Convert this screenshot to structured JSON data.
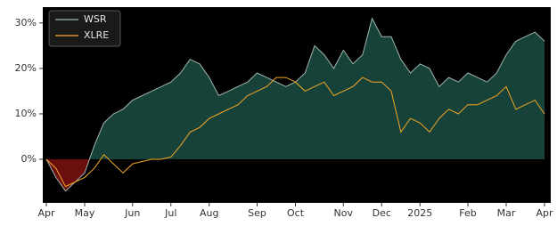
{
  "chart_data": {
    "type": "line",
    "categories": [
      "Apr",
      null,
      null,
      null,
      "May",
      null,
      null,
      null,
      null,
      "Jun",
      null,
      null,
      null,
      "Jul",
      null,
      null,
      null,
      "Aug",
      null,
      null,
      null,
      null,
      "Sep",
      null,
      null,
      null,
      "Oct",
      null,
      null,
      null,
      null,
      "Nov",
      null,
      null,
      null,
      "Dec",
      null,
      null,
      null,
      "2025",
      null,
      null,
      null,
      null,
      "Feb",
      null,
      null,
      null,
      "Mar",
      null,
      null,
      null,
      "Apr"
    ],
    "series": [
      {
        "name": "WSR",
        "color": "#9fb5ad",
        "fill": "#17423a",
        "negative_fill": "#6a0e0e",
        "values": [
          0,
          -4,
          -7,
          -5,
          -3,
          3,
          8,
          10,
          11,
          13,
          14,
          15,
          16,
          17,
          19,
          22,
          21,
          18,
          14,
          15,
          16,
          17,
          19,
          18,
          17,
          16,
          17,
          19,
          25,
          23,
          20,
          24,
          21,
          23,
          31,
          27,
          27,
          22,
          19,
          21,
          20,
          16,
          18,
          17,
          19,
          18,
          17,
          19,
          23,
          26,
          27,
          28,
          26
        ]
      },
      {
        "name": "XLRE",
        "color": "#f5a623",
        "values": [
          0,
          -2,
          -6,
          -5,
          -4,
          -2,
          1,
          -1,
          -3,
          -1,
          -0.5,
          0,
          0,
          0.5,
          3,
          6,
          7,
          9,
          10,
          11,
          12,
          14,
          15,
          16,
          18,
          18,
          17,
          15,
          16,
          17,
          14,
          15,
          16,
          18,
          17,
          17,
          15,
          6,
          9,
          8,
          6,
          9,
          11,
          10,
          12,
          12,
          13,
          14,
          16,
          11,
          12,
          13,
          10
        ]
      }
    ],
    "ylim": [
      -9.6,
      33.5
    ],
    "yticks": [
      {
        "value": 0,
        "label": "0%"
      },
      {
        "value": 10,
        "label": "10%"
      },
      {
        "value": 20,
        "label": "20%"
      },
      {
        "value": 30,
        "label": "30%"
      }
    ],
    "background": "#000000",
    "legend": "upper-left"
  }
}
